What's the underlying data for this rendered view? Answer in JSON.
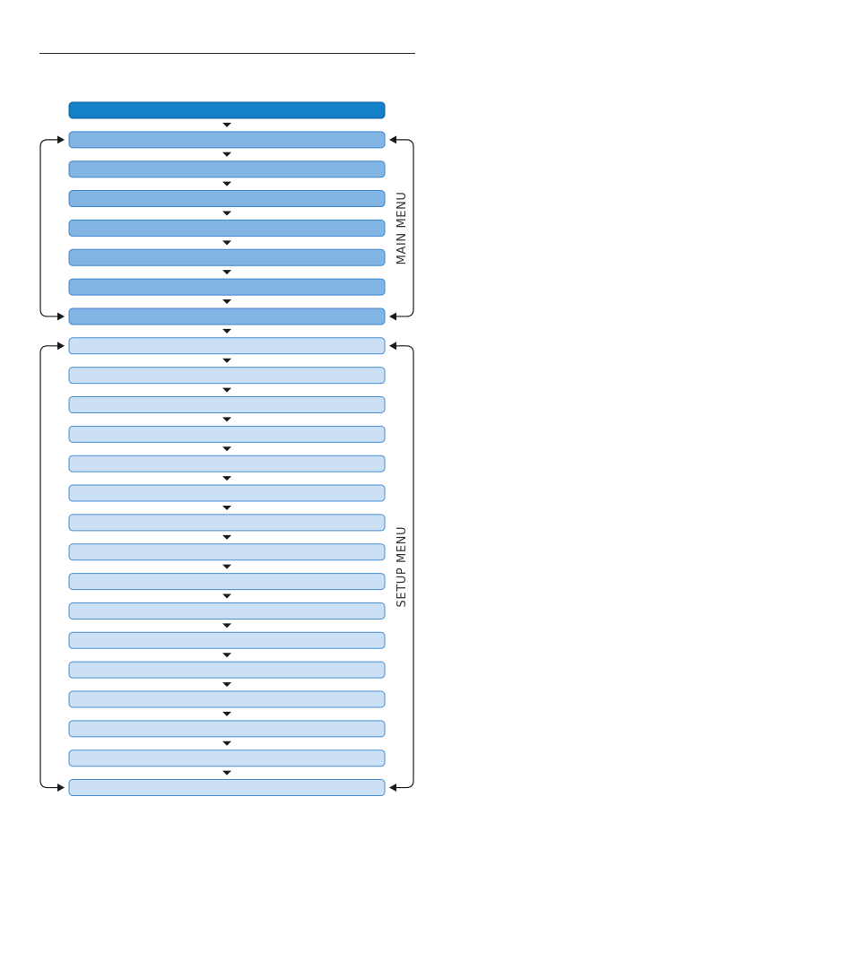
{
  "diagram": {
    "header_bar_color": "#1480c8",
    "sections": [
      {
        "id": "main",
        "label": "MAIN MENU",
        "item_count": 7,
        "fill": "#82b4e4",
        "stroke": "#3f86cc",
        "loop": true
      },
      {
        "id": "setup",
        "label": "SETUP MENU",
        "item_count": 16,
        "fill": "#cbe0f5",
        "stroke": "#4a8fd0",
        "loop": true
      }
    ],
    "arrow_color": "#1a1a1a"
  }
}
